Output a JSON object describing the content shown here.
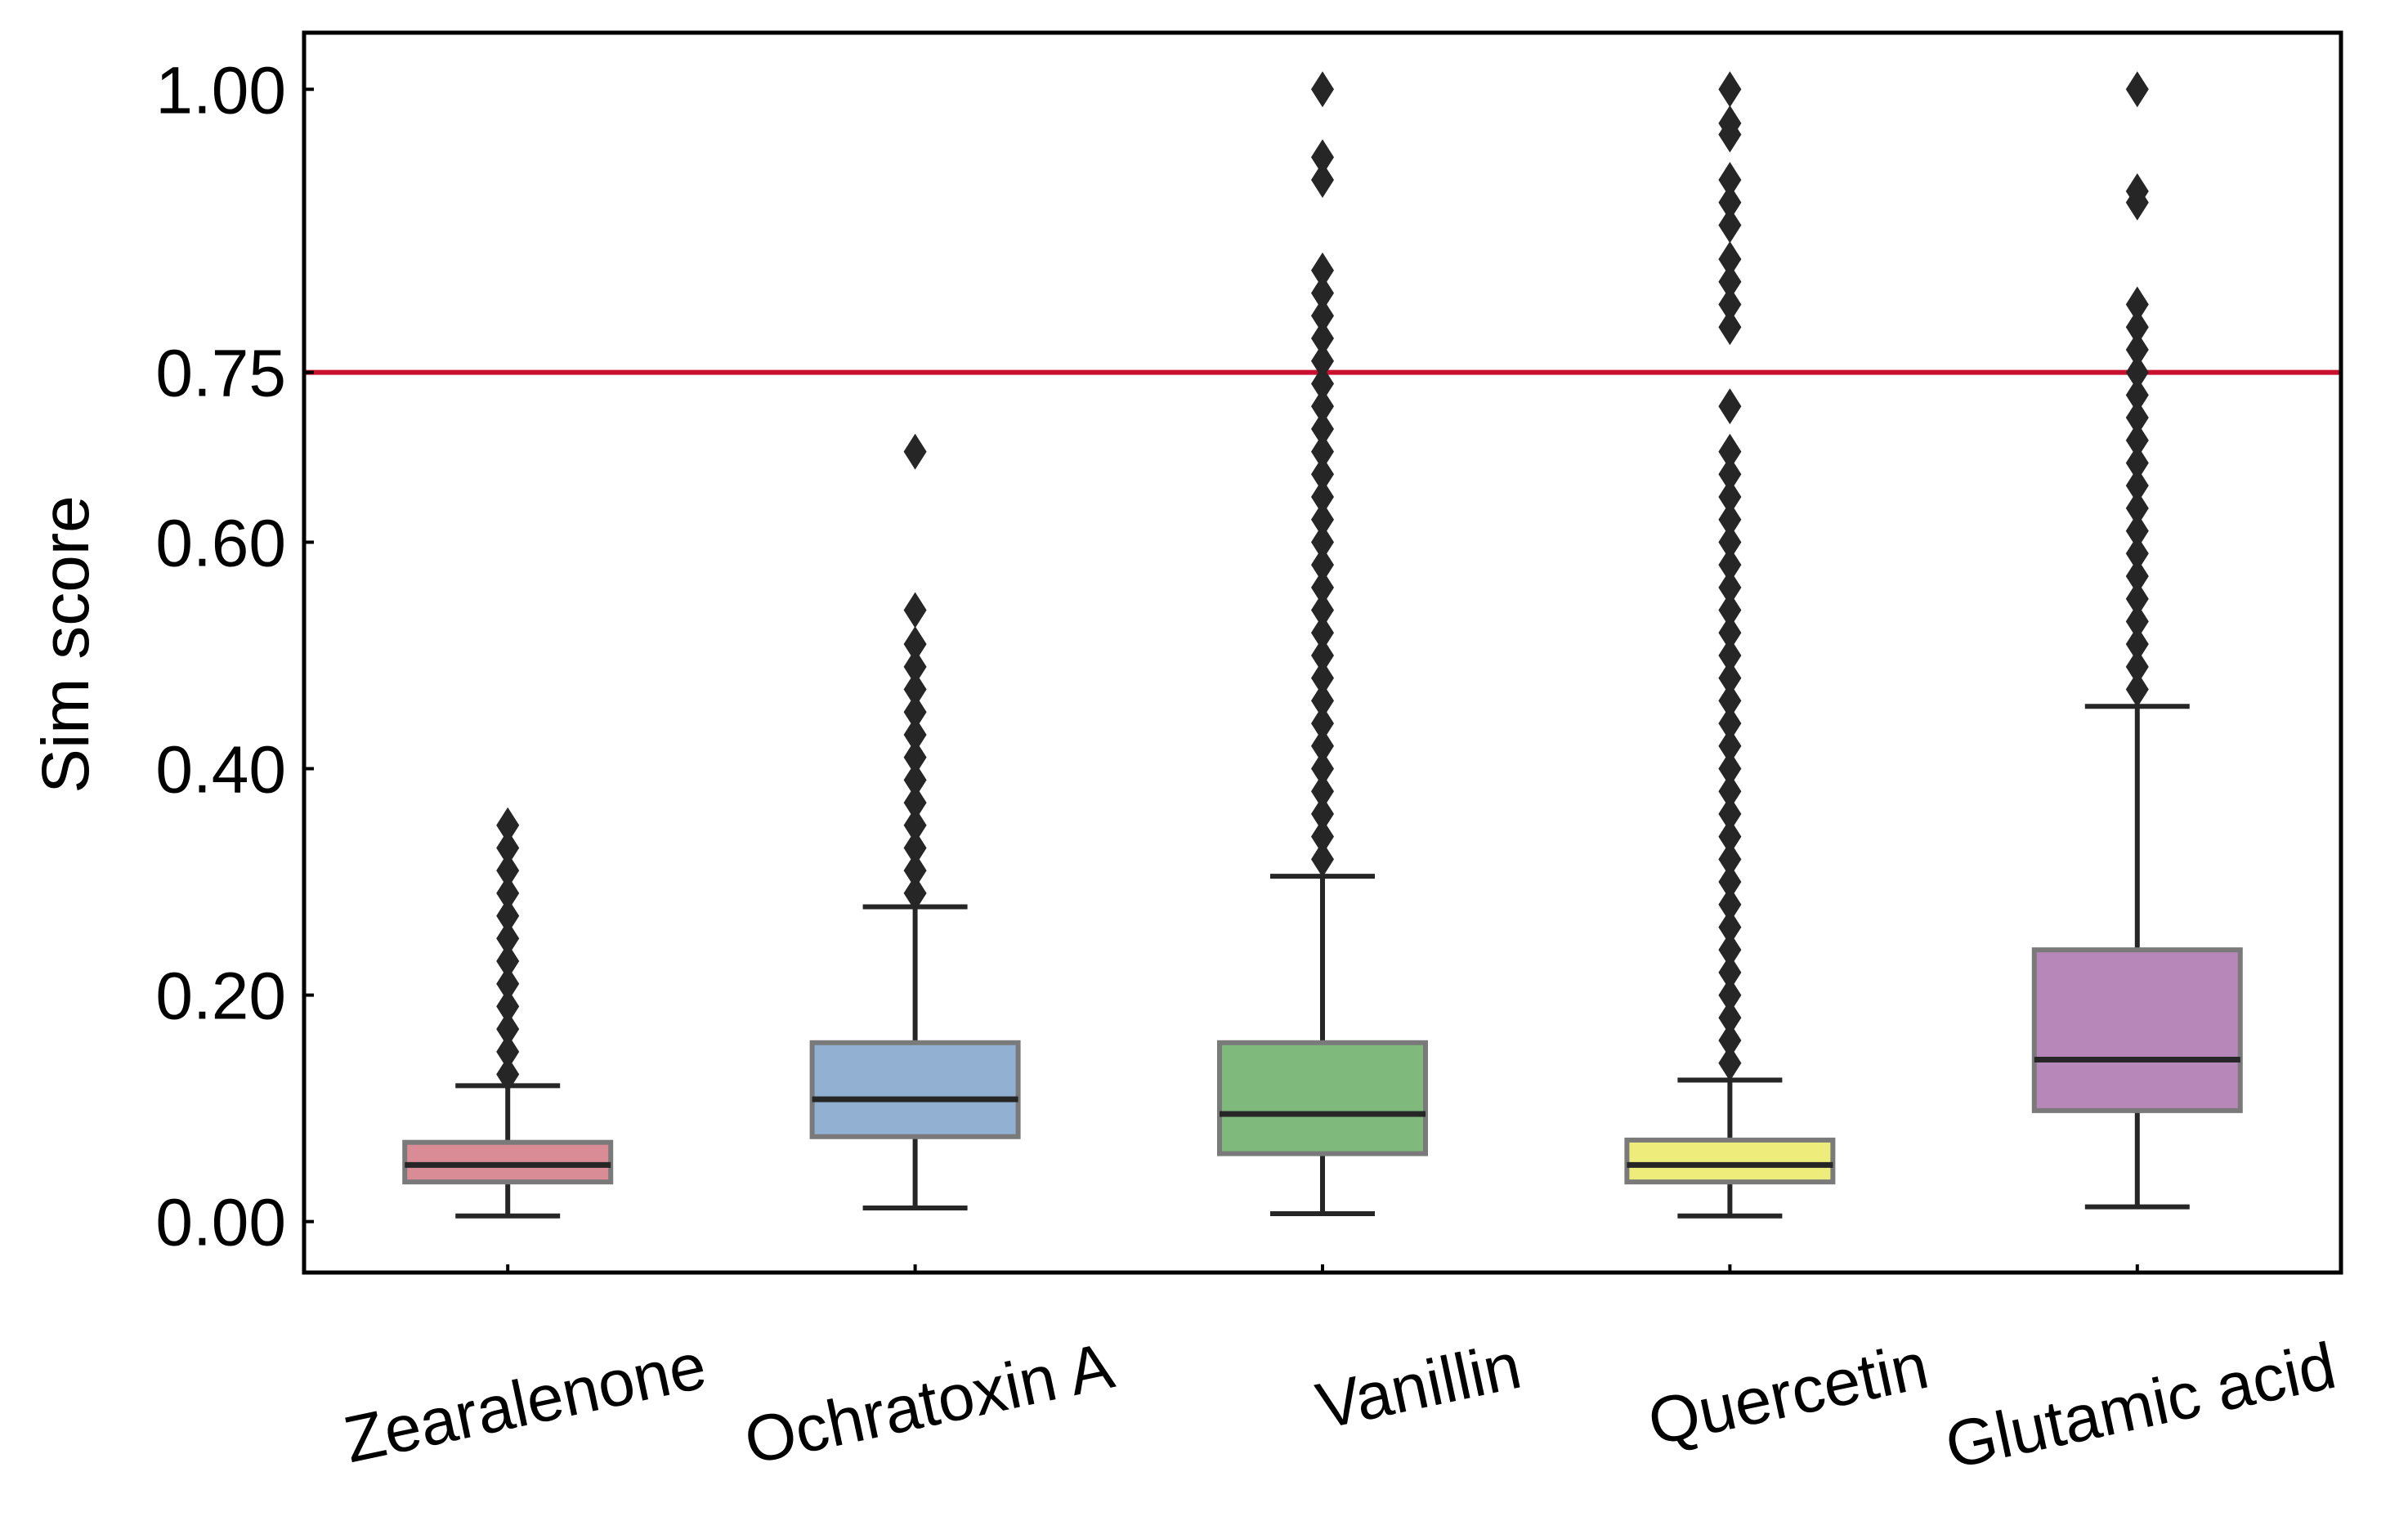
{
  "chart_data": {
    "type": "box",
    "title": "",
    "xlabel": "",
    "ylabel": "Sim score",
    "yticks": [
      "0.00",
      "0.20",
      "0.40",
      "0.60",
      "0.75",
      "1.00"
    ],
    "ytick_values": [
      0.0,
      0.2,
      0.4,
      0.6,
      0.75,
      1.0
    ],
    "ylim": [
      -0.045,
      1.05
    ],
    "threshold": {
      "value": 0.75,
      "color": "#c8102e"
    },
    "grid": false,
    "legend": "none",
    "boxes": [
      {
        "category": "Zearalenone",
        "color": "#d98b96",
        "whisker_low": 0.005,
        "q1": 0.035,
        "median": 0.05,
        "q3": 0.07,
        "whisker_high": 0.12,
        "outliers": [
          0.13,
          0.15,
          0.17,
          0.19,
          0.21,
          0.23,
          0.25,
          0.27,
          0.29,
          0.31,
          0.33,
          0.35
        ]
      },
      {
        "category": "Ochratoxin A",
        "color": "#92b0d2",
        "whisker_low": 0.012,
        "q1": 0.075,
        "median": 0.108,
        "q3": 0.158,
        "whisker_high": 0.278,
        "outliers": [
          0.29,
          0.31,
          0.33,
          0.35,
          0.37,
          0.39,
          0.41,
          0.43,
          0.45,
          0.47,
          0.49,
          0.51,
          0.54,
          0.68
        ]
      },
      {
        "category": "Vanillin",
        "color": "#7fba7c",
        "whisker_low": 0.007,
        "q1": 0.06,
        "median": 0.095,
        "q3": 0.158,
        "whisker_high": 0.305,
        "outliers": [
          0.32,
          0.34,
          0.36,
          0.38,
          0.4,
          0.42,
          0.44,
          0.46,
          0.48,
          0.5,
          0.52,
          0.54,
          0.56,
          0.58,
          0.6,
          0.62,
          0.64,
          0.66,
          0.68,
          0.7,
          0.72,
          0.74,
          0.76,
          0.78,
          0.8,
          0.82,
          0.84,
          0.92,
          0.94,
          1.0
        ]
      },
      {
        "category": "Quercetin",
        "color": "#eeec7a",
        "whisker_low": 0.005,
        "q1": 0.035,
        "median": 0.05,
        "q3": 0.072,
        "whisker_high": 0.125,
        "outliers": [
          0.14,
          0.16,
          0.18,
          0.2,
          0.22,
          0.24,
          0.26,
          0.28,
          0.3,
          0.32,
          0.34,
          0.36,
          0.38,
          0.4,
          0.42,
          0.44,
          0.46,
          0.48,
          0.5,
          0.52,
          0.54,
          0.56,
          0.58,
          0.6,
          0.62,
          0.64,
          0.66,
          0.68,
          0.72,
          0.79,
          0.81,
          0.83,
          0.85,
          0.88,
          0.9,
          0.92,
          0.96,
          0.97,
          1.0
        ]
      },
      {
        "category": "Glutamic acid",
        "color": "#b887b9",
        "whisker_low": 0.013,
        "q1": 0.098,
        "median": 0.143,
        "q3": 0.24,
        "whisker_high": 0.455,
        "outliers": [
          0.47,
          0.49,
          0.51,
          0.53,
          0.55,
          0.57,
          0.59,
          0.61,
          0.63,
          0.65,
          0.67,
          0.69,
          0.71,
          0.73,
          0.75,
          0.77,
          0.79,
          0.81,
          0.9,
          0.91,
          1.0
        ]
      }
    ]
  }
}
